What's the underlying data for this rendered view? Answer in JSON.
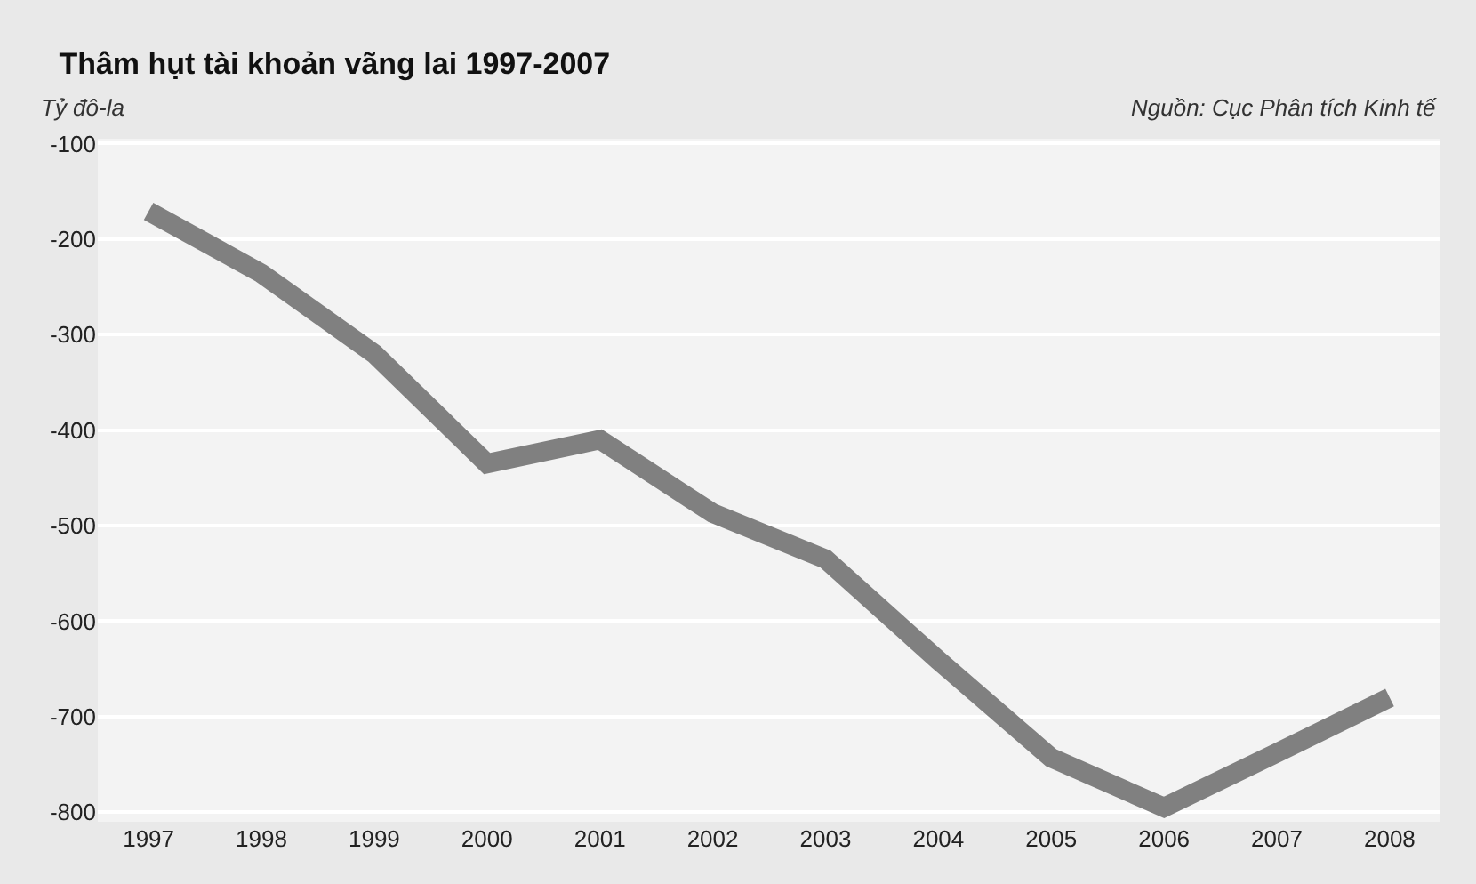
{
  "chart_data": {
    "type": "line",
    "title": "Thâm hụt tài khoản vãng lai 1997-2007",
    "ylabel": "Tỷ đô-la",
    "annotations": [
      "Nguồn: Cục Phân tích Kinh tế"
    ],
    "categories": [
      "1997",
      "1998",
      "1999",
      "2000",
      "2001",
      "2002",
      "2003",
      "2004",
      "2005",
      "2006",
      "2007",
      "2008"
    ],
    "series": [
      {
        "color": "#808080",
        "values": [
          -171,
          -236,
          -320,
          -435,
          -410,
          -487,
          -535,
          -641,
          -743,
          -795,
          -738,
          -680
        ]
      }
    ],
    "ylim": [
      -810,
      -95
    ],
    "yticks": [
      -100,
      -200,
      -300,
      -400,
      -500,
      -600,
      -700,
      -800
    ],
    "grid": "y",
    "legend": false,
    "marker": "none",
    "line_style": "solid"
  }
}
